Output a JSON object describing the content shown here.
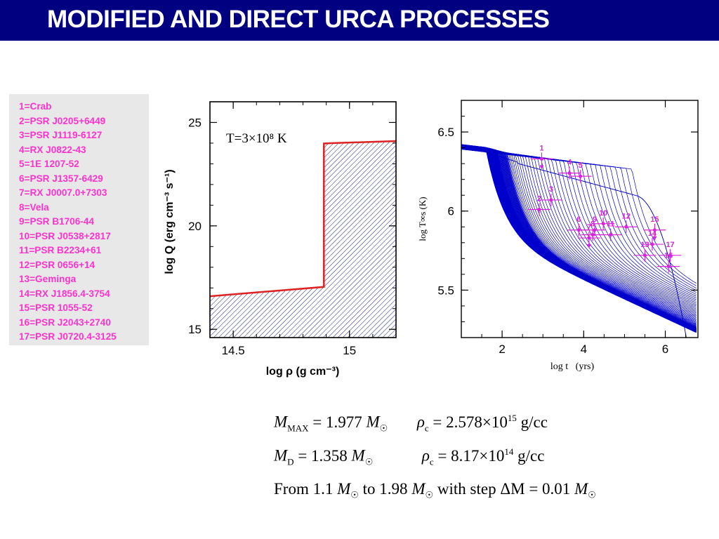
{
  "title": "MODIFIED AND DIRECT URCA PROCESSES",
  "legend": [
    "1=Crab",
    "2=PSR J0205+6449",
    "3=PSR J1119-6127",
    "4=RX J0822-43",
    "5=1E 1207-52",
    "6=PSR J1357-6429",
    "7=RX J0007.0+7303",
    "8=Vela",
    "9=PSR B1706-44",
    "10=PSR J0538+2817",
    "11=PSR B2234+61",
    "12=PSR 0656+14",
    "13=Geminga",
    "14=RX J1856.4-3754",
    "15=PSR 1055-52",
    "16=PSR J2043+2740",
    "17=PSR J0720.4-3125"
  ],
  "chart_data": [
    {
      "type": "line",
      "annotation": "T=3×10⁸ K",
      "xlabel": "log ρ (g cm⁻³)",
      "ylabel": "log Q (erg cm⁻³ s⁻¹)",
      "xlim": [
        14.4,
        15.2
      ],
      "ylim": [
        14.6,
        26.0
      ],
      "xticks": [
        "14.5",
        "15"
      ],
      "yticks": [
        "15",
        "20",
        "25"
      ],
      "line_color": "#dd2222",
      "hatch_color": "#1a237e",
      "series": [
        {
          "x": [
            14.4,
            14.89,
            14.89,
            14.93,
            15.2
          ],
          "y": [
            16.6,
            17.05,
            23.98,
            24.0,
            24.1
          ]
        }
      ]
    },
    {
      "type": "line",
      "xlabel": "log t   (yrs)",
      "ylabel": "log T∞s (K)",
      "xlim": [
        1.0,
        6.8
      ],
      "ylim": [
        5.2,
        6.7
      ],
      "xticks": [
        "2",
        "4",
        "6"
      ],
      "yticks": [
        "5.5",
        "6",
        "6.5"
      ],
      "line_color": "#0000cc",
      "point_color": "#dd22dd",
      "curve_count": 88,
      "observations": [
        {
          "label": "1",
          "x": 2.97,
          "y": 6.33,
          "upper_limit": true
        },
        {
          "label": "2",
          "x": 2.91,
          "y": 6.01,
          "upper_limit": false
        },
        {
          "label": "3",
          "x": 3.2,
          "y": 6.07,
          "upper_limit": false
        },
        {
          "label": "4",
          "x": 3.65,
          "y": 6.24,
          "upper_limit": false
        },
        {
          "label": "5",
          "x": 3.92,
          "y": 6.22,
          "upper_limit": false
        },
        {
          "label": "6",
          "x": 3.88,
          "y": 5.88,
          "upper_limit": false
        },
        {
          "label": "7",
          "x": 4.13,
          "y": 5.83,
          "upper_limit": true
        },
        {
          "label": "8",
          "x": 4.22,
          "y": 5.85,
          "upper_limit": false
        },
        {
          "label": "9",
          "x": 4.27,
          "y": 5.88,
          "upper_limit": false
        },
        {
          "label": "10",
          "x": 4.48,
          "y": 5.92,
          "upper_limit": false
        },
        {
          "label": "11",
          "x": 4.66,
          "y": 5.85,
          "upper_limit": false
        },
        {
          "label": "12",
          "x": 5.04,
          "y": 5.9,
          "upper_limit": false
        },
        {
          "label": "13",
          "x": 5.5,
          "y": 5.72,
          "upper_limit": false
        },
        {
          "label": "14",
          "x": 5.68,
          "y": 5.79,
          "upper_limit": false
        },
        {
          "label": "15",
          "x": 5.74,
          "y": 5.88,
          "upper_limit": true
        },
        {
          "label": "16",
          "x": 6.08,
          "y": 5.65,
          "upper_limit": false
        },
        {
          "label": "17",
          "x": 6.12,
          "y": 5.72,
          "upper_limit": false
        }
      ]
    }
  ],
  "formulas": {
    "line1": {
      "m": "M",
      "sub": "MAX",
      "eq": "= 1.977",
      "unit": "M",
      "rho": "ρ",
      "rsub": "c",
      "reqv": "= 2.578×10",
      "exp": "15",
      "gcc": "g/cc"
    },
    "line2": {
      "m": "M",
      "sub": "D",
      "eq": "= 1.358",
      "unit": "M",
      "rho": "ρ",
      "rsub": "c",
      "reqv": "= 8.17×10",
      "exp": "14",
      "gcc": "g/cc"
    },
    "line3": {
      "from": "From 1.1",
      "m1": "M",
      "to": "to 1.98",
      "m2": "M",
      "step": "with step ΔM",
      "eqv": "= 0.01",
      "m3": "M",
      "sun": "☉"
    }
  }
}
